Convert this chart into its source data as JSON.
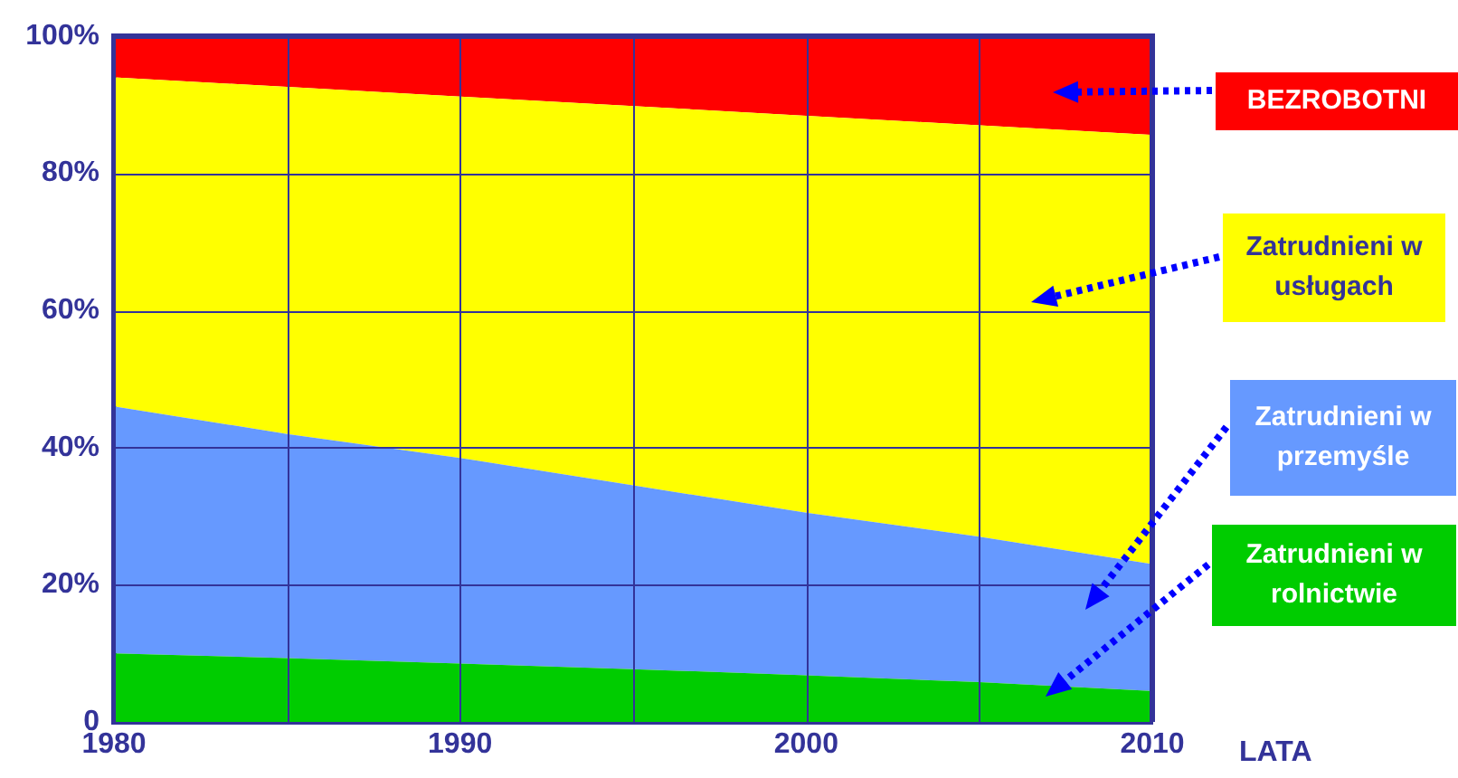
{
  "chart_data": {
    "type": "area",
    "stacked": true,
    "xlabel": "LATA",
    "x": [
      1980,
      1985,
      1990,
      1995,
      2000,
      2005,
      2010
    ],
    "xlim": [
      1980,
      2010
    ],
    "xticks": [
      1980,
      {
        "value": 1985,
        "label": null
      },
      1990,
      {
        "value": 1995,
        "label": null
      },
      2000,
      {
        "value": 2005,
        "label": null
      },
      2010
    ],
    "ylim": [
      0,
      100
    ],
    "yticks": [
      0,
      {
        "value": 20,
        "label": "20%"
      },
      {
        "value": 40,
        "label": "40%"
      },
      {
        "value": 60,
        "label": "60%"
      },
      {
        "value": 80,
        "label": "80%"
      },
      {
        "value": 100,
        "label": "100%"
      }
    ],
    "grid": true,
    "legend": "right",
    "series": [
      {
        "name": "Zatrudnieni w rolnictwie",
        "color": "#00cc00",
        "values": [
          10,
          9.3,
          8.5,
          7.7,
          6.8,
          5.8,
          4.5
        ]
      },
      {
        "name": "Zatrudnieni w przemyśle",
        "color": "#6699ff",
        "values": [
          36,
          32.7,
          30,
          26.8,
          23.7,
          21.2,
          18.5
        ]
      },
      {
        "name": "Zatrudnieni w usługach",
        "color": "#ffff00",
        "values": [
          48,
          50.6,
          52.7,
          55.3,
          57.9,
          60,
          62.6
        ]
      },
      {
        "name": "BEZROBOTNI",
        "color": "#ff0000",
        "values": [
          6,
          7.4,
          8.8,
          10.2,
          11.6,
          13,
          14.4
        ]
      }
    ]
  }
}
